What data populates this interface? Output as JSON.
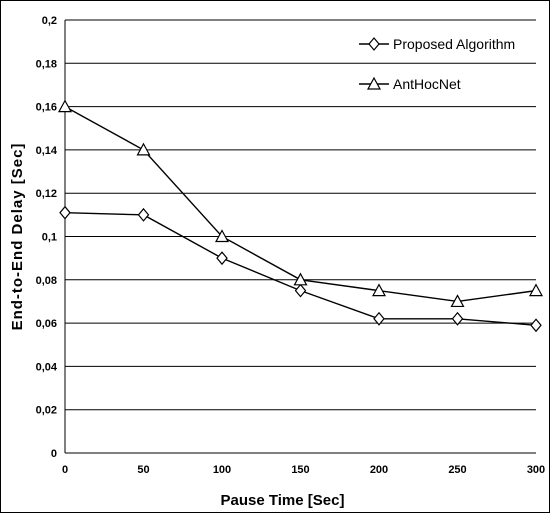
{
  "chart_data": {
    "type": "line",
    "xlabel": "Pause Time [Sec]",
    "ylabel": "End-to-End Delay [Sec]",
    "x": [
      0,
      50,
      100,
      150,
      200,
      250,
      300
    ],
    "x_ticks": [
      "0",
      "50",
      "100",
      "150",
      "200",
      "250",
      "300"
    ],
    "y_ticks": [
      "0",
      "0,02",
      "0,04",
      "0,06",
      "0,08",
      "0,1",
      "0,12",
      "0,14",
      "0,16",
      "0,18",
      "0,2"
    ],
    "ylim": [
      0,
      0.2
    ],
    "grid": "horizontal",
    "legend_position": "top-right",
    "series": [
      {
        "name": "Proposed Algorithm",
        "marker": "diamond",
        "values": [
          0.111,
          0.11,
          0.09,
          0.075,
          0.062,
          0.062,
          0.059
        ]
      },
      {
        "name": "AntHocNet",
        "marker": "triangle",
        "values": [
          0.16,
          0.14,
          0.1,
          0.08,
          0.075,
          0.07,
          0.075
        ]
      }
    ]
  }
}
